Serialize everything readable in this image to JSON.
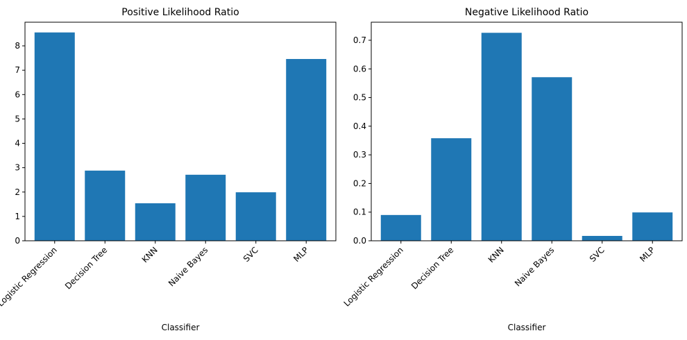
{
  "chart_data": [
    {
      "type": "bar",
      "title": "Positive Likelihood Ratio",
      "x_label": "Classifier",
      "categories": [
        "Logistic Regression",
        "Decision Tree",
        "KNN",
        "Naive Bayes",
        "SVC",
        "MLP"
      ],
      "values": [
        8.55,
        2.88,
        1.54,
        2.71,
        1.99,
        7.46
      ],
      "color": "#1f77b4",
      "ylim": [
        0,
        8.97
      ],
      "yticks": [
        0,
        1,
        2,
        3,
        4,
        5,
        6,
        7,
        8
      ]
    },
    {
      "type": "bar",
      "title": "Negative Likelihood Ratio",
      "x_label": "Classifier",
      "categories": [
        "Logistic Regression",
        "Decision Tree",
        "KNN",
        "Naive Bayes",
        "SVC",
        "MLP"
      ],
      "values": [
        0.09,
        0.358,
        0.726,
        0.571,
        0.017,
        0.099
      ],
      "color": "#1f77b4",
      "ylim": [
        0,
        0.763
      ],
      "yticks": [
        {
          "value": 0,
          "label": "0.0"
        },
        0.1,
        0.2,
        0.3,
        0.4,
        0.5,
        0.6,
        0.7
      ]
    }
  ]
}
